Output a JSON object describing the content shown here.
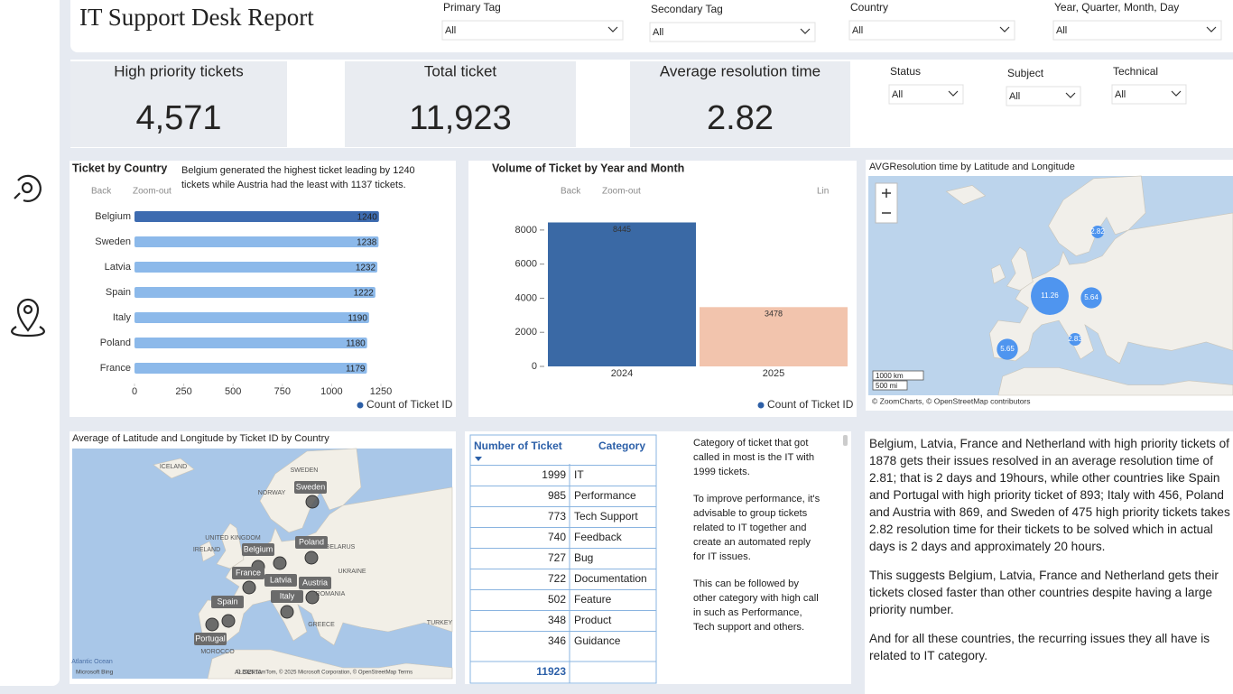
{
  "header": {
    "title": "IT Support Desk Report"
  },
  "filters": [
    {
      "label": "Primary Tag",
      "value": "All"
    },
    {
      "label": "Secondary Tag",
      "value": "All"
    },
    {
      "label": "Country",
      "value": "All"
    },
    {
      "label": "Year, Quarter, Month, Day",
      "value": "All"
    },
    {
      "label": "Status",
      "value": "All"
    },
    {
      "label": "Subject",
      "value": "All"
    },
    {
      "label": "Technical",
      "value": "All"
    }
  ],
  "kpis": [
    {
      "label": "High priority tickets",
      "value": "4,571"
    },
    {
      "label": "Total ticket",
      "value": "11,923"
    },
    {
      "label": "Average resolution time",
      "value": "2.82"
    }
  ],
  "chart_data": [
    {
      "type": "hbar",
      "title": "Ticket by Country",
      "annotation": "Belgium generated the highest ticket leading by 1240 tickets while Austria had the least with 1137 tickets.",
      "toolbar": [
        "Back",
        "Zoom-out"
      ],
      "categories": [
        "Belgium",
        "Sweden",
        "Latvia",
        "Spain",
        "Italy",
        "Poland",
        "France"
      ],
      "series": [
        {
          "name": "Count of Ticket ID",
          "color": "#2d5fa6",
          "values": [
            1240,
            1238,
            1232,
            1222,
            1190,
            1180,
            1179
          ]
        }
      ],
      "bar_colors": [
        "#3d6bb0",
        "#8cb9ea",
        "#8cb9ea",
        "#8cb9ea",
        "#8cb9ea",
        "#8cb9ea",
        "#8cb9ea"
      ],
      "xlim": [
        0,
        1250
      ],
      "xticks": [
        0,
        250,
        500,
        750,
        1000,
        1250
      ]
    },
    {
      "type": "bar",
      "title": "Volume of Ticket by Year and Month",
      "toolbar": [
        "Back",
        "Zoom-out",
        "Lin"
      ],
      "categories": [
        "2024",
        "2025"
      ],
      "series": [
        {
          "name": "Count of Ticket ID",
          "color": "#2d5fa6",
          "values": [
            8445,
            3478
          ]
        }
      ],
      "bar_colors": [
        "#3a69a5",
        "#f2c4ad"
      ],
      "ylim": [
        0,
        9000
      ],
      "yticks": [
        0,
        2000,
        4000,
        6000,
        8000
      ]
    },
    {
      "type": "bubble_map",
      "title": "AVGResolution time by Latitude and Longitude",
      "values": [
        11.26,
        5.64,
        5.65,
        2.82,
        2.83
      ],
      "color": "#3d8bef",
      "scale_labels": [
        "1000 km",
        "500 mi"
      ],
      "attribution": "© ZoomCharts, © OpenStreetMap contributors"
    },
    {
      "type": "point_map",
      "title": "Average of Latitude and Longitude by Ticket ID by Country",
      "points": [
        "Sweden",
        "Belgium",
        "Poland",
        "France",
        "Latvia",
        "Austria",
        "Spain",
        "Italy",
        "Portugal"
      ],
      "place_labels": [
        "ICELAND",
        "SWEDEN",
        "NORWAY",
        "UNITED KINGDOM",
        "IRELAND",
        "BELARUS",
        "UKRAINE",
        "ROMANIA",
        "GREECE",
        "TURKEY",
        "MOROCCO",
        "ALGERIA",
        "Atlantic Ocean"
      ],
      "attribution": "© 2025 TomTom, © 2025 Microsoft Corporation, © OpenStreetMap Terms",
      "logo": "Microsoft Bing"
    }
  ],
  "table": {
    "headers": [
      "Number of Ticket",
      "Category"
    ],
    "rows": [
      [
        "1999",
        "IT"
      ],
      [
        "985",
        "Performance"
      ],
      [
        "773",
        "Tech Support"
      ],
      [
        "740",
        "Feedback"
      ],
      [
        "727",
        "Bug"
      ],
      [
        "722",
        "Documentation"
      ],
      [
        "502",
        "Feature"
      ],
      [
        "348",
        "Product"
      ],
      [
        "346",
        "Guidance"
      ]
    ],
    "total": "11923"
  },
  "insight": {
    "paragraphs": [
      "Category of ticket that got called in most is the IT with 1999 tickets.",
      "To improve performance, it's advisable to group tickets related to IT together and create an automated reply for IT issues.",
      "This can be followed by other category with high call in such as Performance, Tech support and others."
    ]
  },
  "summary": {
    "paragraphs": [
      "Belgium, Latvia, France and Netherland with high priority tickets of 1878 gets their issues resolved in an average resolution time of 2.81; that is 2 days and 19hours, while other countries like Spain and Portugal with high priority ticket of 893; Italy with 456, Poland and Austria with 869, and Sweden of 475 high priority tickets takes 2.82 resolution time for their tickets to be solved which in actual days is 2 days and approximately 20 hours.",
      "This suggests Belgium, Latvia, France and Netherland gets their tickets closed faster than other countries despite having a large priority number.",
      "And for all these countries, the recurring issues they all have is related to IT category."
    ]
  }
}
